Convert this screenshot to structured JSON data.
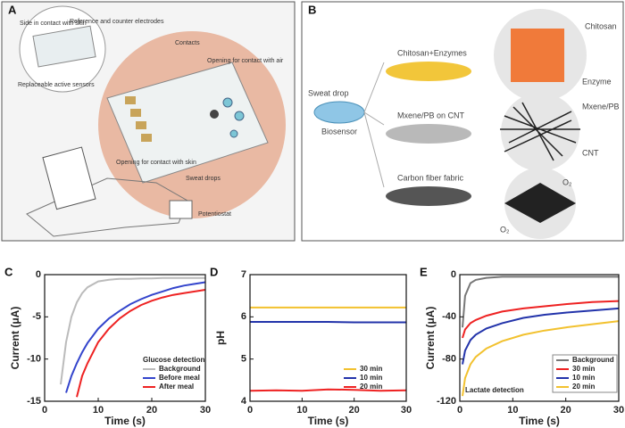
{
  "panels": {
    "a": {
      "letter": "A",
      "labels": [
        "Side in contact with skin",
        "Reference and counter electrodes",
        "Replaceable active sensors",
        "Contacts",
        "Opening for contact with air",
        "Opening for contact with skin",
        "Sweat drops",
        "Potentiostat"
      ]
    },
    "b": {
      "letter": "B",
      "labels": [
        "Sweat drop",
        "Biosensor",
        "Chitosan+Enzymes",
        "Mxene/PB on CNT",
        "Carbon fiber fabric",
        "Chitosan",
        "Enzyme",
        "Mxene/PB",
        "CNT",
        "O₂",
        "O₂"
      ]
    }
  },
  "chart_data": [
    {
      "type": "line",
      "panel": "C",
      "xlabel": "Time (s)",
      "ylabel": "Current (μA)",
      "xlim": [
        0,
        30
      ],
      "ylim": [
        -15,
        0
      ],
      "xticks": [
        0,
        10,
        20,
        30
      ],
      "yticks": [
        0,
        -5,
        -10,
        -15
      ],
      "legend_title": "Glucose detection",
      "legend": "lower right",
      "x": [
        3,
        4,
        5,
        6,
        7,
        8,
        10,
        12,
        14,
        16,
        18,
        20,
        22,
        24,
        26,
        28,
        30
      ],
      "series": [
        {
          "name": "Background",
          "color": "#bbbbbb",
          "values": [
            -13,
            -8,
            -5,
            -3.3,
            -2.2,
            -1.5,
            -0.8,
            -0.6,
            -0.5,
            -0.5,
            -0.45,
            -0.45,
            -0.4,
            -0.4,
            -0.4,
            -0.4,
            -0.4
          ]
        },
        {
          "name": "Before meal",
          "color": "#3344cc",
          "values": [
            null,
            -14,
            -12,
            -10.5,
            -9.2,
            -8.1,
            -6.4,
            -5.2,
            -4.3,
            -3.5,
            -2.9,
            -2.4,
            -2.0,
            -1.6,
            -1.3,
            -1.1,
            -0.9
          ]
        },
        {
          "name": "After meal",
          "color": "#ee2222",
          "values": [
            null,
            null,
            null,
            -14.5,
            -12,
            -10.5,
            -8,
            -6.4,
            -5.2,
            -4.3,
            -3.6,
            -3.1,
            -2.7,
            -2.4,
            -2.2,
            -2.0,
            -1.8
          ]
        }
      ]
    },
    {
      "type": "line",
      "panel": "D",
      "xlabel": "Time (s)",
      "ylabel": "pH",
      "xlim": [
        0,
        30
      ],
      "ylim": [
        4,
        7
      ],
      "xticks": [
        0,
        10,
        20,
        30
      ],
      "yticks": [
        4,
        5,
        6,
        7
      ],
      "legend": "lower right",
      "x": [
        0,
        5,
        10,
        15,
        20,
        25,
        30
      ],
      "series": [
        {
          "name": "30 min",
          "color": "#f2c12e",
          "values": [
            6.22,
            6.22,
            6.22,
            6.22,
            6.22,
            6.22,
            6.22
          ]
        },
        {
          "name": "10 min",
          "color": "#2233aa",
          "values": [
            5.88,
            5.88,
            5.88,
            5.88,
            5.87,
            5.87,
            5.87
          ]
        },
        {
          "name": "20 min",
          "color": "#ee2222",
          "values": [
            4.25,
            4.26,
            4.25,
            4.28,
            4.27,
            4.25,
            4.26
          ]
        }
      ]
    },
    {
      "type": "line",
      "panel": "E",
      "xlabel": "Time (s)",
      "ylabel": "Current (μA)",
      "xlim": [
        0,
        30
      ],
      "ylim": [
        -120,
        0
      ],
      "xticks": [
        0,
        10,
        20,
        30
      ],
      "yticks": [
        0,
        -40,
        -80,
        -120
      ],
      "annotation": "Lactate detection",
      "legend": "lower right",
      "x": [
        0.5,
        1,
        2,
        3,
        5,
        8,
        12,
        16,
        20,
        25,
        30
      ],
      "series": [
        {
          "name": "Background",
          "color": "#777777",
          "values": [
            -50,
            -20,
            -8,
            -5,
            -3,
            -2,
            -2,
            -2,
            -2,
            -2,
            -2
          ]
        },
        {
          "name": "30 min",
          "color": "#ee2222",
          "values": [
            -60,
            -52,
            -46,
            -43,
            -39,
            -35,
            -32,
            -30,
            -28,
            -26,
            -25
          ]
        },
        {
          "name": "10 min",
          "color": "#2233aa",
          "values": [
            -85,
            -72,
            -62,
            -57,
            -51,
            -46,
            -41,
            -38,
            -36,
            -34,
            -32
          ]
        },
        {
          "name": "20 min",
          "color": "#f2c12e",
          "values": [
            -115,
            -98,
            -85,
            -78,
            -70,
            -63,
            -57,
            -53,
            -50,
            -47,
            -44
          ]
        }
      ]
    }
  ]
}
